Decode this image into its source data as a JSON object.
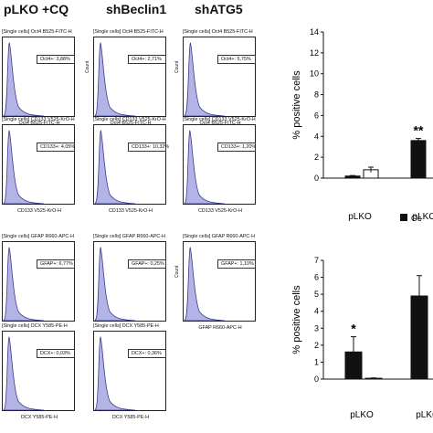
{
  "headers": [
    "pLKO +CQ",
    "shBeclin1",
    "shATG5"
  ],
  "panels": [
    {
      "title": "[Single cells] Oct4 B525-FITC-H",
      "gate": "Oct4+: 3,88%",
      "xlabel": "Oct4 B525-FITC-H",
      "ylabel": "",
      "peak": 0.32
    },
    {
      "title": "[Single cells] Oct4 B525-FITC-H",
      "gate": "Oct4+: 2,71%",
      "xlabel": "Oct4 B525-FITC-H",
      "ylabel": "Count",
      "peak": 0.3
    },
    {
      "title": "[Single cells] Oct4 B525-FITC-H",
      "gate": "Oct4+: 5,75%",
      "xlabel": "Oct4 B525-FITC-H",
      "ylabel": "Count",
      "peak": 0.34
    },
    {
      "title": "[Single cells] CD133 V525-KrO-H",
      "gate": "CD133+: 4,05%",
      "xlabel": "CD133 V525-KrO-H",
      "ylabel": "",
      "peak": 0.3
    },
    {
      "title": "[Single cells] CD133 V525-KrO-H",
      "gate": "CD133+: 10,32%",
      "xlabel": "CD133 V525-KrO-H",
      "ylabel": "",
      "peak": 0.33
    },
    {
      "title": "[Single cells] CD133 V525-KrO-H",
      "gate": "CD133+: 1,20%",
      "xlabel": "CD133 V525-KrO-H",
      "ylabel": "",
      "peak": 0.28
    },
    {
      "title": "[Single cells] GFAP R660-APC-H",
      "gate": "GFAP+: 6,77%",
      "xlabel": "",
      "ylabel": "",
      "peak": 0.3
    },
    {
      "title": "[Single cells] GFAP R660-APC-H",
      "gate": "GFAP+: 0,25%",
      "xlabel": "",
      "ylabel": "",
      "peak": 0.31
    },
    {
      "title": "[Single cells] GFAP R660-APC-H",
      "gate": "GFAP+: 1,10%",
      "xlabel": "GFAP R660-APC-H",
      "ylabel": "Count",
      "peak": 0.32
    },
    {
      "title": "[Single cells] DCX Y585-PE-H",
      "gate": "DCX+: 0,03%",
      "xlabel": "DCX Y585-PE-H",
      "ylabel": "",
      "peak": 0.29
    },
    {
      "title": "[Single cells] DCX Y585-PE-H",
      "gate": "DCX+: 0,36%",
      "xlabel": "DCX Y585-PE-H",
      "ylabel": "",
      "peak": 0.3
    }
  ],
  "colors": {
    "histogram_fill": "#b3b3e6",
    "histogram_line": "#3b3b8f",
    "bar_black": "#111111",
    "bar_white": "#ffffff"
  },
  "chart_data": [
    {
      "type": "bar",
      "ylabel": "% positive cells",
      "ylim": [
        0,
        14
      ],
      "yticks": [
        0,
        2,
        4,
        6,
        8,
        10,
        12,
        14
      ],
      "categories": [
        "pLKO",
        "pLKO("
      ],
      "series": [
        {
          "name": "",
          "color": "black",
          "values": [
            0.2,
            3.6
          ],
          "errors": [
            0.05,
            0.2
          ]
        },
        {
          "name": "Oc",
          "color": "white",
          "values": [
            0.8,
            null
          ],
          "errors": [
            0.25,
            null
          ]
        }
      ],
      "annotations": [
        {
          "category": "pLKO(",
          "text": "**"
        }
      ],
      "legend_label": "Oc"
    },
    {
      "type": "bar",
      "ylabel": "% positive cells",
      "ylim": [
        0,
        7
      ],
      "yticks": [
        0,
        1,
        2,
        3,
        4,
        5,
        6,
        7
      ],
      "categories": [
        "pLKO",
        "pLKO"
      ],
      "series": [
        {
          "name": "",
          "color": "black",
          "values": [
            1.6,
            4.9
          ],
          "errors": [
            0.9,
            1.2
          ]
        },
        {
          "name": "",
          "color": "white",
          "values": [
            0.05,
            null
          ],
          "errors": [
            0.02,
            null
          ]
        }
      ],
      "annotations": [
        {
          "category": "pLKO",
          "text": "*"
        }
      ],
      "legend_label": ""
    }
  ]
}
